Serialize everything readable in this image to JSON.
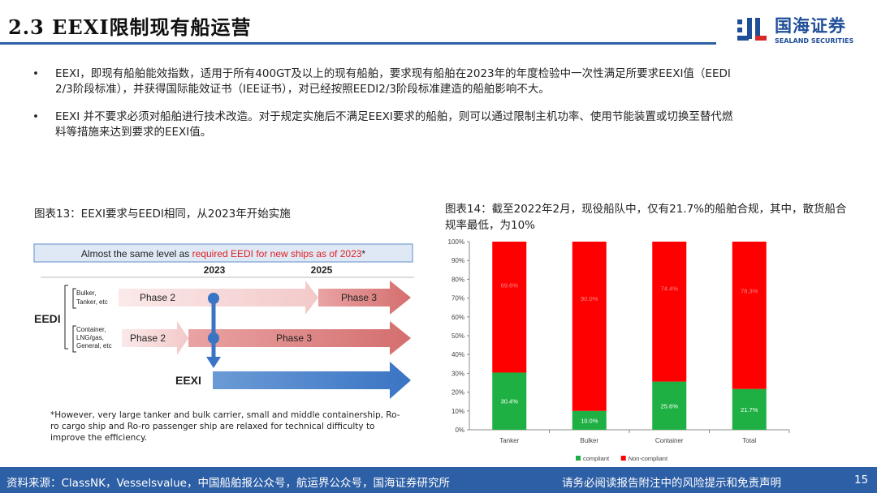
{
  "header": {
    "title": "2.3 EEXI限制现有船运营",
    "logo_cn": "国海证券",
    "logo_en": "SEALAND SECURITIES",
    "accent_color": "#2d5fa6"
  },
  "bullets": [
    "EEXI，即现有船舶能效指数，适用于所有400GT及以上的现有船舶，要求现有船舶在2023年的年度检验中一次性满足所要求EEXI值（EEDI 2/3阶段标准），并获得国际能效证书（IEE证书），对已经按照EEDI2/3阶段标准建造的船舶影响不大。",
    "EEXI 并不要求必须对船舶进行技术改造。对于规定实施后不满足EEXI要求的船舶，则可以通过限制主机功率、使用节能装置或切换至替代燃料等措施来达到要求的EEXI值。"
  ],
  "bullet_symbol": "•",
  "figure13": {
    "caption": "图表13：EEXI要求与EEDI相同，从2023年开始实施",
    "banner_prefix": "Almost the same level as ",
    "banner_highlight": "required EEDI for new ships as of 2023",
    "banner_suffix": "*",
    "year_a": "2023",
    "year_b": "2025",
    "eedi_label": "EEDI",
    "group1_label": [
      "Bulker,",
      "Tanker, etc"
    ],
    "group2_label": [
      "Container,",
      "LNG/gas,",
      "General, etc"
    ],
    "phase2": "Phase 2",
    "phase3": "Phase 3",
    "eexi_label": "EEXI",
    "note": "*However, very large tanker and bulk carrier, small and middle containership, Ro-ro cargo ship and Ro-ro passenger ship are relaxed for technical difficulty to improve the efficiency."
  },
  "figure14": {
    "caption": "图表14：截至2022年2月，现役船队中，仅有21.7%的船舶合规，其中，散货船合规率最低，为10%"
  },
  "chart_data": {
    "type": "bar",
    "stacked": true,
    "categories": [
      "Tanker",
      "Bulker",
      "Container",
      "Total"
    ],
    "series": [
      {
        "name": "compliant",
        "values": [
          30.4,
          10.0,
          25.6,
          21.7
        ],
        "labels": [
          "30.4%",
          "10.0%",
          "25.6%",
          "21.7%"
        ],
        "color": "#1fb043"
      },
      {
        "name": "Non-compliant",
        "values": [
          69.6,
          90.0,
          74.4,
          78.3
        ],
        "labels": [
          "69.6%",
          "90.0%",
          "74.4%",
          "78.3%"
        ],
        "color": "#ff0000"
      }
    ],
    "ylim": [
      0,
      100
    ],
    "yticks": [
      "0%",
      "10%",
      "20%",
      "30%",
      "40%",
      "50%",
      "60%",
      "70%",
      "80%",
      "90%",
      "100%"
    ],
    "legend_position": "bottom",
    "grid": false
  },
  "footer": {
    "source": "资料来源：ClassNK，Vesselsvalue，中国船舶报公众号，航运界公众号，国海证券研究所",
    "disclaimer": "请务必阅读报告附注中的风险提示和免责声明",
    "page": "15"
  }
}
